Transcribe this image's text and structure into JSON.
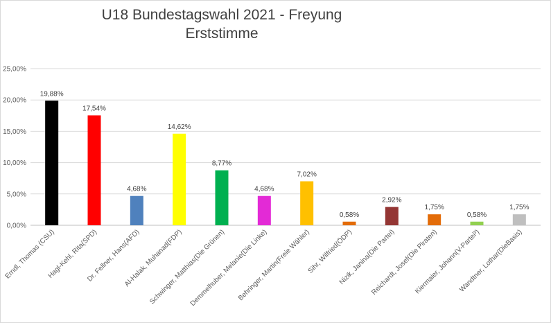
{
  "chart_data": {
    "type": "bar",
    "title": "U18 Bundestagswahl 2021 - Freyung",
    "subtitle": "Erststimme",
    "categories": [
      "Erndl, Thomas (CSU)",
      "Hagl-Kehl, Rita(SPD)",
      "Dr. Fellner, Hans(AFD)",
      "Al-Halak, Muhanad(FDP)",
      "Schwinger, Matthias(Die Grünen)",
      "Demmelhuber, Melanie(Die Linke)",
      "Behringer, Martin(Freie Wähler)",
      "Sihr, Wilfried(ÖDP)",
      "Nizik, Janina(Die Partei)",
      "Reichardt, Josef(Die Piraten)",
      "Kiermaier, Johann(V-Partei³)",
      "Wandtner, Lothar(DieBasis)"
    ],
    "values": [
      19.88,
      17.54,
      4.68,
      14.62,
      8.77,
      4.68,
      7.02,
      0.58,
      2.92,
      1.75,
      0.58,
      1.75
    ],
    "data_labels": [
      "19,88%",
      "17,54%",
      "4,68%",
      "14,62%",
      "8,77%",
      "4,68%",
      "7,02%",
      "0,58%",
      "2,92%",
      "1,75%",
      "0,58%",
      "1,75%"
    ],
    "colors": [
      "#000000",
      "#ff0000",
      "#4f81bd",
      "#ffff00",
      "#00b050",
      "#e32ad6",
      "#ffc000",
      "#e36c09",
      "#943634",
      "#e36c09",
      "#92d050",
      "#bfbfbf"
    ],
    "y_ticks": [
      "0,00%",
      "5,00%",
      "10,00%",
      "15,00%",
      "20,00%",
      "25,00%"
    ],
    "ylim": [
      0,
      25
    ],
    "xlabel": "",
    "ylabel": "",
    "grid": true,
    "legend": "none"
  }
}
